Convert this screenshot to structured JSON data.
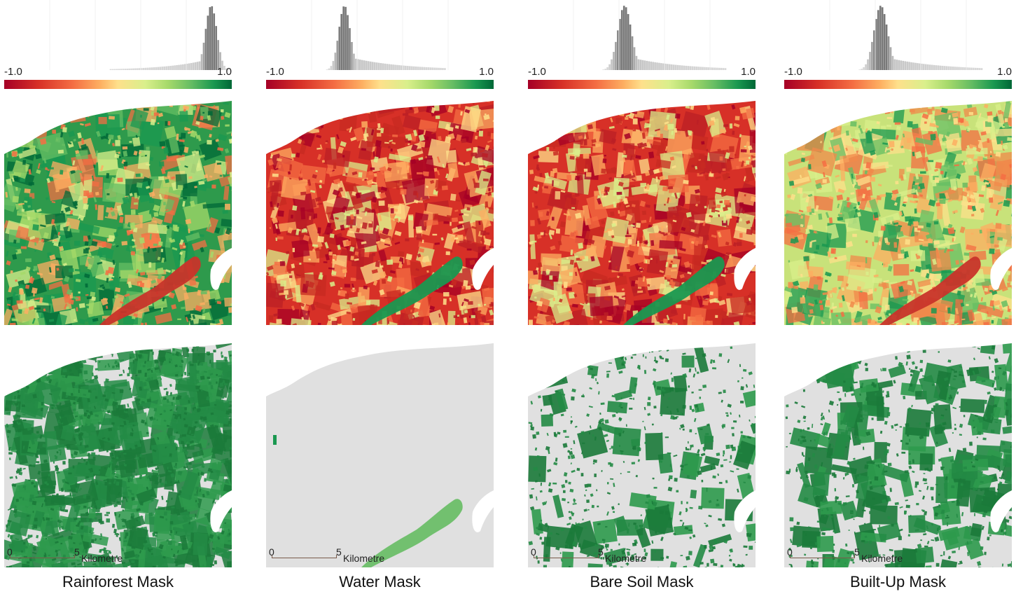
{
  "colorbar": {
    "min_label": "-1.0",
    "max_label": "1.0",
    "stops": [
      "#a50026",
      "#d73027",
      "#f46d43",
      "#fdae61",
      "#fee08b",
      "#d9ef8b",
      "#a6d96a",
      "#66bd63",
      "#1a9850",
      "#006837"
    ]
  },
  "scalebar": {
    "zero": "0",
    "five": "5",
    "unit": "Kilometre"
  },
  "colors": {
    "mask_background": "#e0e0e0",
    "mask_foreground": "#238b45",
    "sea": "#ffffff"
  },
  "panels": [
    {
      "caption": "Rainforest Mask",
      "histogram_peak": 0.82,
      "histogram_spread": 0.05,
      "histogram_tail": "left",
      "index_dominant": "green",
      "mask_coverage": "high"
    },
    {
      "caption": "Water Mask",
      "histogram_peak": -0.31,
      "histogram_spread": 0.05,
      "histogram_tail": "right",
      "index_dominant": "red",
      "mask_coverage": "river"
    },
    {
      "caption": "Bare Soil Mask",
      "histogram_peak": -0.15,
      "histogram_spread": 0.06,
      "histogram_tail": "right",
      "index_dominant": "red",
      "mask_coverage": "sparse"
    },
    {
      "caption": "Built-Up Mask",
      "histogram_peak": -0.15,
      "histogram_spread": 0.06,
      "histogram_tail": "right",
      "index_dominant": "mixed",
      "mask_coverage": "medium"
    }
  ]
}
